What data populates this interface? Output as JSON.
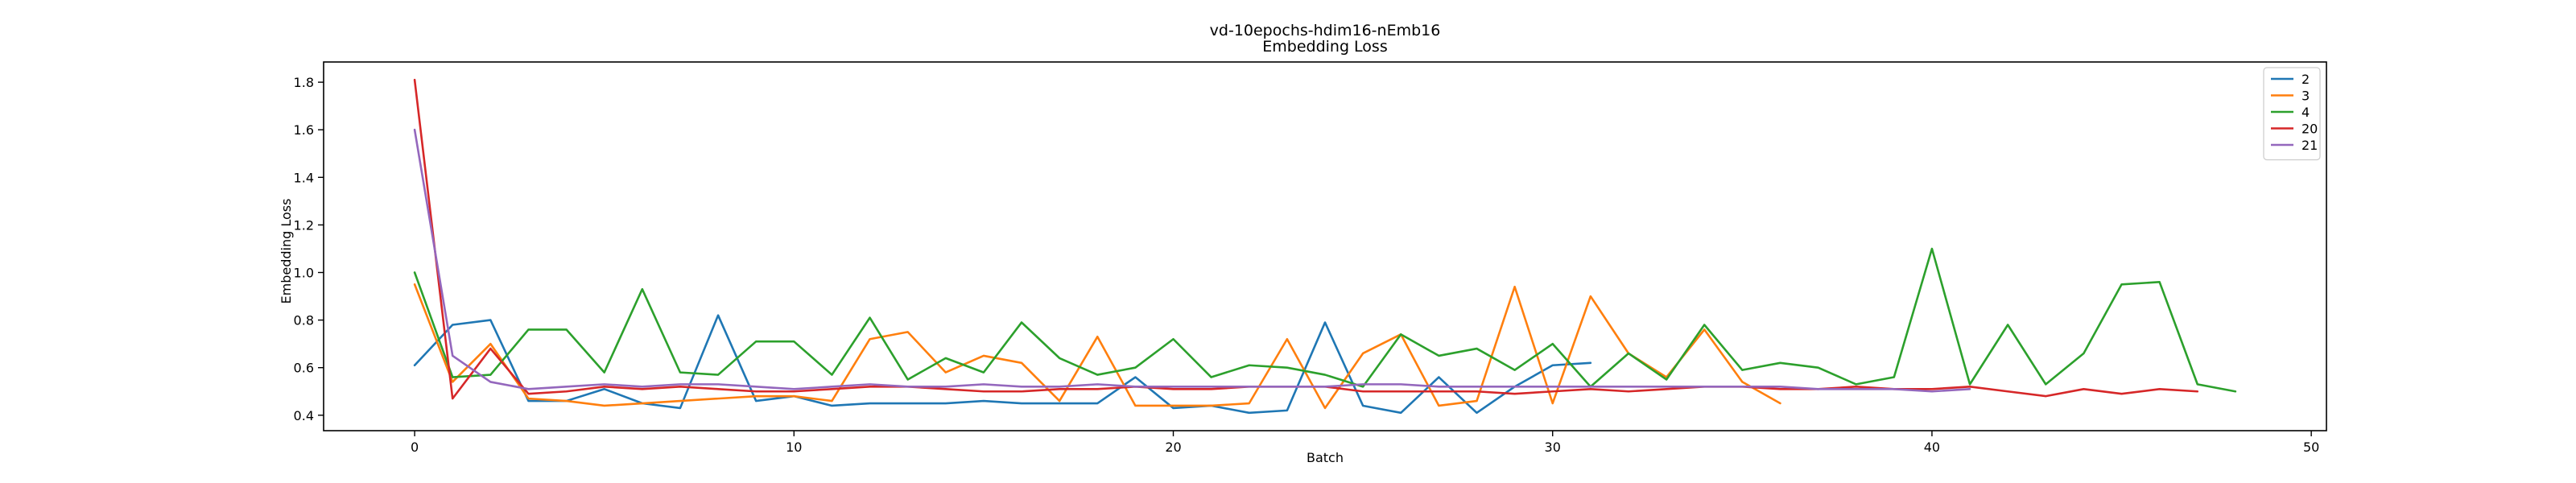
{
  "chart_data": {
    "type": "line",
    "title": "vd-10epochs-hdim16-nEmb16",
    "subtitle": "Embedding Loss",
    "xlabel": "Batch",
    "ylabel": "Embedding Loss",
    "xlim": [
      -2.4,
      50.4
    ],
    "ylim": [
      0.335,
      1.885
    ],
    "xticks": [
      0,
      10,
      20,
      30,
      40,
      50
    ],
    "yticks": [
      0.4,
      0.6,
      0.8,
      1.0,
      1.2,
      1.4,
      1.6,
      1.8
    ],
    "grid": false,
    "legend_position": "top-right",
    "series": [
      {
        "name": "2",
        "color": "#1f77b4",
        "x": [
          0,
          1,
          2,
          3,
          4,
          5,
          6,
          7,
          8,
          9,
          10,
          11,
          12,
          13,
          14,
          15,
          16,
          17,
          18,
          19,
          20,
          21,
          22,
          23,
          24,
          25,
          26,
          27,
          28,
          29,
          30,
          31
        ],
        "values": [
          0.61,
          0.78,
          0.8,
          0.46,
          0.46,
          0.51,
          0.45,
          0.43,
          0.82,
          0.46,
          0.48,
          0.44,
          0.45,
          0.45,
          0.45,
          0.46,
          0.45,
          0.45,
          0.45,
          0.56,
          0.43,
          0.44,
          0.41,
          0.42,
          0.79,
          0.44,
          0.41,
          0.56,
          0.41,
          0.52,
          0.61,
          0.62
        ]
      },
      {
        "name": "3",
        "color": "#ff7f0e",
        "x": [
          0,
          1,
          2,
          3,
          4,
          5,
          6,
          7,
          8,
          9,
          10,
          11,
          12,
          13,
          14,
          15,
          16,
          17,
          18,
          19,
          20,
          21,
          22,
          23,
          24,
          25,
          26,
          27,
          28,
          29,
          30,
          31,
          32,
          33,
          34,
          35,
          36
        ],
        "values": [
          0.95,
          0.54,
          0.7,
          0.47,
          0.46,
          0.44,
          0.45,
          0.46,
          0.47,
          0.48,
          0.48,
          0.46,
          0.72,
          0.75,
          0.58,
          0.65,
          0.62,
          0.46,
          0.73,
          0.44,
          0.44,
          0.44,
          0.45,
          0.72,
          0.43,
          0.66,
          0.74,
          0.44,
          0.46,
          0.94,
          0.45,
          0.9,
          0.66,
          0.56,
          0.76,
          0.54,
          0.45
        ]
      },
      {
        "name": "4",
        "color": "#2ca02c",
        "x": [
          0,
          1,
          2,
          3,
          4,
          5,
          6,
          7,
          8,
          9,
          10,
          11,
          12,
          13,
          14,
          15,
          16,
          17,
          18,
          19,
          20,
          21,
          22,
          23,
          24,
          25,
          26,
          27,
          28,
          29,
          30,
          31,
          32,
          33,
          34,
          35,
          36,
          37,
          38,
          39,
          40,
          41,
          42,
          43,
          44,
          45,
          46,
          47,
          48
        ],
        "values": [
          1.0,
          0.56,
          0.57,
          0.76,
          0.76,
          0.58,
          0.93,
          0.58,
          0.57,
          0.71,
          0.71,
          0.57,
          0.81,
          0.55,
          0.64,
          0.58,
          0.79,
          0.64,
          0.57,
          0.6,
          0.72,
          0.56,
          0.61,
          0.6,
          0.57,
          0.52,
          0.74,
          0.65,
          0.68,
          0.59,
          0.7,
          0.52,
          0.66,
          0.55,
          0.78,
          0.59,
          0.62,
          0.6,
          0.53,
          0.56,
          1.1,
          0.53,
          0.78,
          0.53,
          0.66,
          0.95,
          0.96,
          0.53,
          0.5
        ]
      },
      {
        "name": "20",
        "color": "#d62728",
        "x": [
          0,
          1,
          2,
          3,
          4,
          5,
          6,
          7,
          8,
          9,
          10,
          11,
          12,
          13,
          14,
          15,
          16,
          17,
          18,
          19,
          20,
          21,
          22,
          23,
          24,
          25,
          26,
          27,
          28,
          29,
          30,
          31,
          32,
          33,
          34,
          35,
          36,
          37,
          38,
          39,
          40,
          41,
          42,
          43,
          44,
          45,
          46,
          47
        ],
        "values": [
          1.81,
          0.47,
          0.68,
          0.49,
          0.5,
          0.52,
          0.51,
          0.52,
          0.51,
          0.5,
          0.5,
          0.51,
          0.52,
          0.52,
          0.51,
          0.5,
          0.5,
          0.51,
          0.51,
          0.52,
          0.51,
          0.51,
          0.52,
          0.52,
          0.52,
          0.5,
          0.5,
          0.5,
          0.5,
          0.49,
          0.5,
          0.51,
          0.5,
          0.51,
          0.52,
          0.52,
          0.51,
          0.51,
          0.52,
          0.51,
          0.51,
          0.52,
          0.5,
          0.48,
          0.51,
          0.49,
          0.51,
          0.5
        ]
      },
      {
        "name": "21",
        "color": "#9467bd",
        "x": [
          0,
          1,
          2,
          3,
          4,
          5,
          6,
          7,
          8,
          9,
          10,
          11,
          12,
          13,
          14,
          15,
          16,
          17,
          18,
          19,
          20,
          21,
          22,
          23,
          24,
          25,
          26,
          27,
          28,
          29,
          30,
          31,
          32,
          33,
          34,
          35,
          36,
          37,
          38,
          39,
          40,
          41
        ],
        "values": [
          1.6,
          0.65,
          0.54,
          0.51,
          0.52,
          0.53,
          0.52,
          0.53,
          0.53,
          0.52,
          0.51,
          0.52,
          0.53,
          0.52,
          0.52,
          0.53,
          0.52,
          0.52,
          0.53,
          0.52,
          0.52,
          0.52,
          0.52,
          0.52,
          0.52,
          0.53,
          0.53,
          0.52,
          0.52,
          0.52,
          0.52,
          0.52,
          0.52,
          0.52,
          0.52,
          0.52,
          0.52,
          0.51,
          0.51,
          0.51,
          0.5,
          0.51
        ]
      }
    ]
  }
}
